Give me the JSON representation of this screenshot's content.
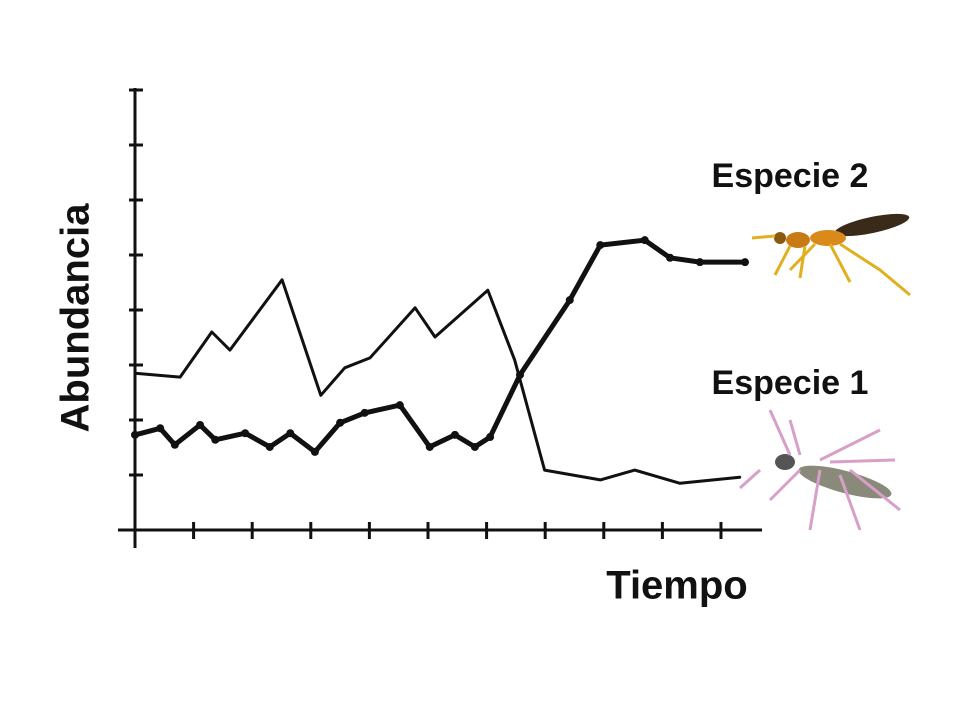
{
  "chart_data": {
    "type": "line",
    "x_label": "Tiempo",
    "y_label": "Abundancia",
    "xlim": [
      0,
      10.7
    ],
    "ylim": [
      0,
      8
    ],
    "xticks": [
      0,
      1,
      2,
      3,
      4,
      5,
      6,
      7,
      8,
      9,
      10
    ],
    "yticks": [
      1,
      2,
      3,
      4,
      5,
      6,
      7,
      8
    ],
    "series": [
      {
        "name": "Especie 1",
        "color": "#111111",
        "dotted": false,
        "x": [
          0,
          0.77,
          1.31,
          1.62,
          2.51,
          3.17,
          3.58,
          4.01,
          4.78,
          5.12,
          6.02,
          6.48,
          6.99,
          7.94,
          8.53,
          9.3,
          10.32
        ],
        "values": [
          2.85,
          2.78,
          3.6,
          3.27,
          4.55,
          2.45,
          2.95,
          3.13,
          4.04,
          3.51,
          4.36,
          3.09,
          1.09,
          0.91,
          1.09,
          0.85,
          0.96
        ]
      },
      {
        "name": "Especie 2",
        "color": "#111111",
        "dotted": true,
        "x": [
          0,
          0.43,
          0.68,
          1.11,
          1.37,
          1.88,
          2.3,
          2.65,
          3.07,
          3.5,
          3.92,
          4.52,
          5.03,
          5.46,
          5.8,
          6.06,
          6.57,
          7.42,
          7.94,
          8.7,
          9.13,
          9.64,
          10.41
        ],
        "values": [
          1.73,
          1.85,
          1.55,
          1.91,
          1.64,
          1.76,
          1.51,
          1.76,
          1.42,
          1.95,
          2.13,
          2.27,
          1.51,
          1.73,
          1.51,
          1.69,
          2.82,
          4.18,
          5.18,
          5.27,
          4.95,
          4.87,
          4.87
        ]
      }
    ]
  }
}
